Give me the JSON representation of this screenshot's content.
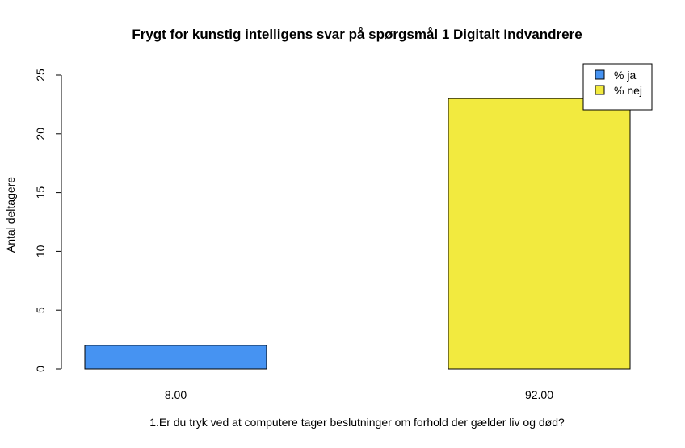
{
  "chart_data": {
    "type": "bar",
    "title": "Frygt for kunstig intelligens svar på spørgsmål 1 Digitalt Indvandrere",
    "xlabel": "1.Er du tryk ved at computere tager beslutninger om forhold der gælder liv og død?",
    "ylabel": "Antal deltagere",
    "ylim": [
      0,
      25
    ],
    "yticks": [
      "0",
      "5",
      "10",
      "15",
      "20",
      "25"
    ],
    "categories": [
      "8.00",
      "92.00"
    ],
    "values": [
      2,
      23
    ],
    "bar_colors": [
      "#4693F2",
      "#F2EA3F"
    ],
    "grid": false,
    "legend": {
      "position": "top-right",
      "entries": [
        {
          "label": "% ja",
          "color": "#4693F2"
        },
        {
          "label": "% nej",
          "color": "#F2EA3F"
        }
      ]
    }
  }
}
